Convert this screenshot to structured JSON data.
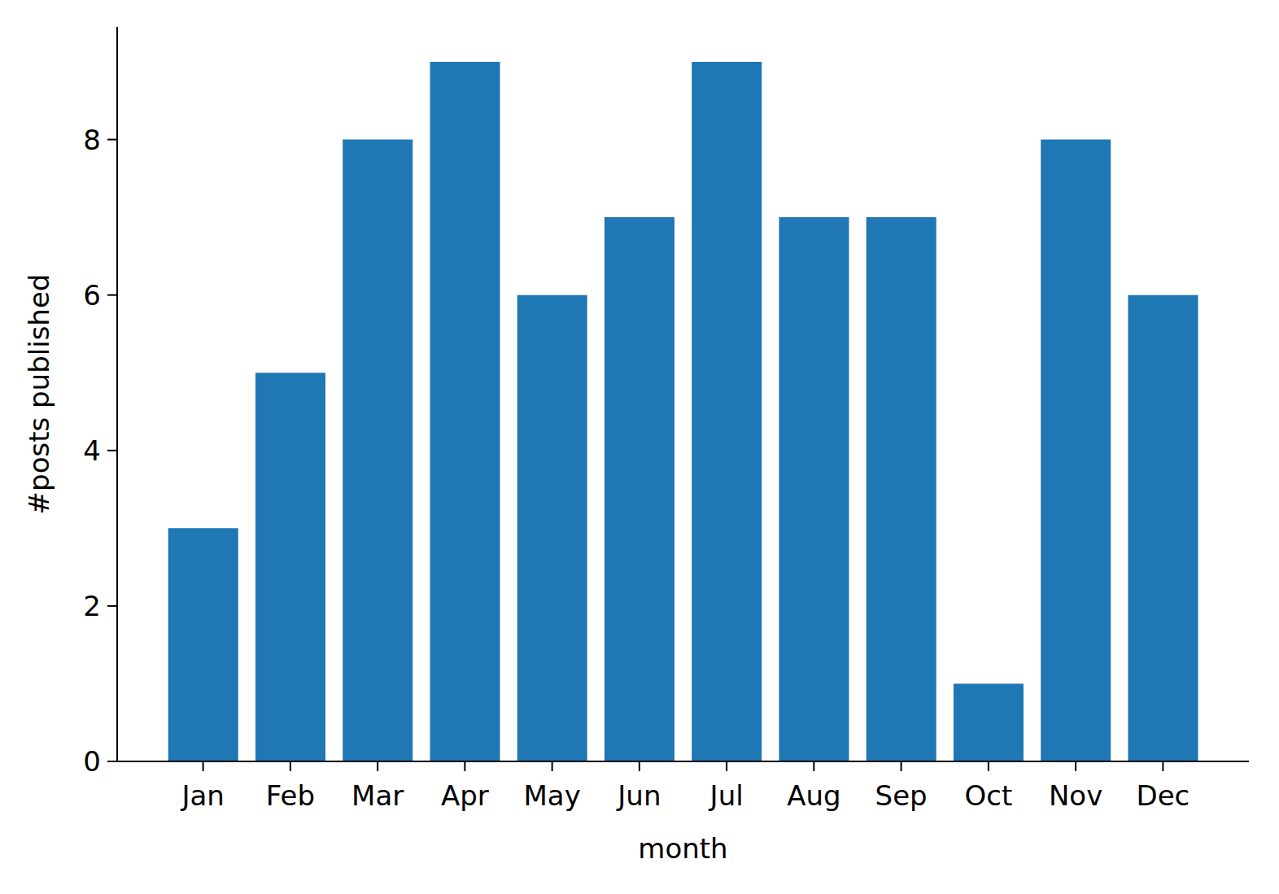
{
  "chart_data": {
    "type": "bar",
    "categories": [
      "Jan",
      "Feb",
      "Mar",
      "Apr",
      "May",
      "Jun",
      "Jul",
      "Aug",
      "Sep",
      "Oct",
      "Nov",
      "Dec"
    ],
    "values": [
      3,
      5,
      8,
      9,
      6,
      7,
      9,
      7,
      7,
      1,
      8,
      6
    ],
    "color": "#1f77b4",
    "xlabel": "month",
    "ylabel": "#posts published",
    "ylim": [
      0,
      9.45
    ],
    "yticks": [
      0,
      2,
      4,
      6,
      8
    ],
    "grid": false
  }
}
